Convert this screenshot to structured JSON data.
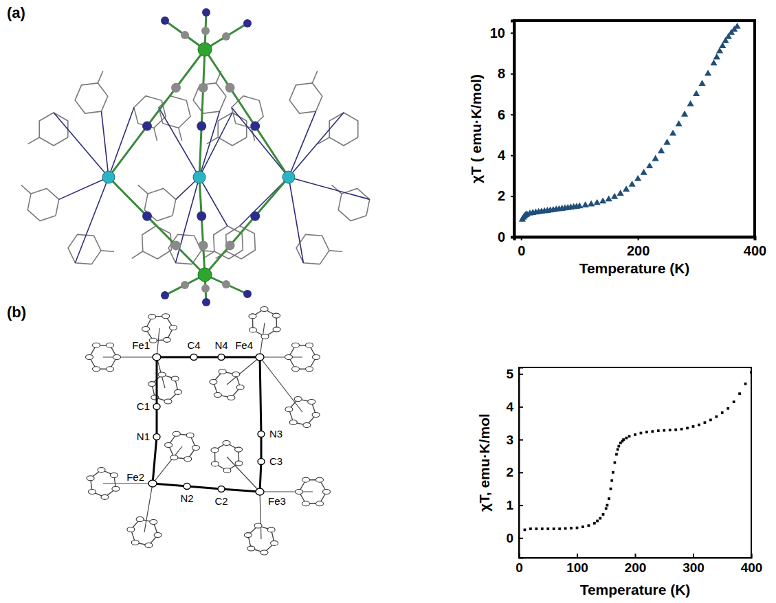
{
  "panel_labels": [
    "(a)",
    "(b)"
  ],
  "structure_b": {
    "atom_labels": [
      "Fe1",
      "C4",
      "N4",
      "Fe4",
      "C1",
      "N1",
      "N3",
      "C3",
      "Fe2",
      "N2",
      "C2",
      "Fe3"
    ]
  },
  "chart_data": [
    {
      "type": "scatter",
      "marker": "triangle",
      "color": "#1f4e79",
      "grid": false,
      "xlabel": "Temperature (K)",
      "ylabel": "χT ( emu·K/mol)",
      "xlim": [
        -12,
        400
      ],
      "xticks": [
        0,
        200,
        400
      ],
      "ylim": [
        0,
        10.6
      ],
      "yticks": [
        0,
        2,
        4,
        6,
        8,
        10
      ],
      "x": [
        2,
        4,
        6,
        8,
        10,
        15,
        20,
        25,
        30,
        35,
        40,
        45,
        50,
        55,
        60,
        65,
        70,
        75,
        80,
        85,
        90,
        95,
        100,
        110,
        120,
        130,
        140,
        150,
        160,
        170,
        180,
        190,
        200,
        210,
        220,
        230,
        240,
        250,
        260,
        270,
        280,
        290,
        300,
        310,
        320,
        330,
        335,
        340,
        345,
        350,
        355,
        360,
        365,
        370
      ],
      "values": [
        0.85,
        0.95,
        1.02,
        1.07,
        1.1,
        1.15,
        1.18,
        1.2,
        1.22,
        1.24,
        1.26,
        1.28,
        1.3,
        1.32,
        1.34,
        1.36,
        1.38,
        1.4,
        1.42,
        1.44,
        1.46,
        1.48,
        1.5,
        1.55,
        1.6,
        1.66,
        1.74,
        1.84,
        1.96,
        2.12,
        2.32,
        2.56,
        2.84,
        3.14,
        3.46,
        3.82,
        4.2,
        4.62,
        5.06,
        5.52,
        6.0,
        6.5,
        7.0,
        7.5,
        8.0,
        8.5,
        8.8,
        9.1,
        9.35,
        9.6,
        9.8,
        10.0,
        10.15,
        10.3
      ]
    },
    {
      "type": "scatter",
      "marker": "square",
      "color": "#000000",
      "grid": false,
      "xlabel": "Temperature (K)",
      "ylabel": "χT, emu·K/mol",
      "xlim": [
        0,
        400
      ],
      "xticks": [
        0,
        100,
        200,
        300,
        400
      ],
      "ylim": [
        -0.6,
        5.2
      ],
      "yticks": [
        0,
        1,
        2,
        3,
        4,
        5
      ],
      "x": [
        10,
        20,
        30,
        40,
        50,
        60,
        70,
        80,
        90,
        100,
        110,
        120,
        130,
        135,
        140,
        145,
        150,
        152,
        155,
        158,
        160,
        162,
        165,
        168,
        170,
        172,
        175,
        178,
        180,
        185,
        190,
        200,
        210,
        220,
        230,
        240,
        250,
        260,
        270,
        280,
        290,
        300,
        310,
        320,
        330,
        340,
        350,
        360,
        370,
        380,
        390,
        400
      ],
      "values": [
        0.25,
        0.28,
        0.28,
        0.28,
        0.28,
        0.28,
        0.28,
        0.29,
        0.3,
        0.31,
        0.34,
        0.38,
        0.45,
        0.52,
        0.6,
        0.72,
        0.9,
        1.0,
        1.2,
        1.5,
        1.75,
        2.0,
        2.3,
        2.55,
        2.7,
        2.8,
        2.9,
        2.95,
        3.0,
        3.05,
        3.1,
        3.15,
        3.2,
        3.23,
        3.25,
        3.27,
        3.28,
        3.29,
        3.3,
        3.32,
        3.35,
        3.4,
        3.45,
        3.52,
        3.6,
        3.7,
        3.82,
        3.95,
        4.15,
        4.4,
        4.7,
        5.05
      ]
    }
  ]
}
